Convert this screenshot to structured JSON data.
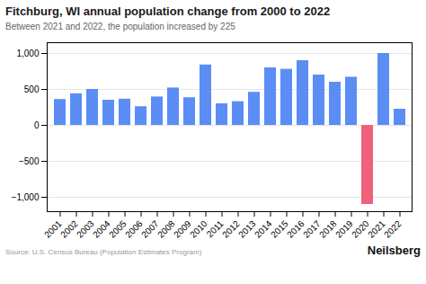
{
  "chart_data": {
    "type": "bar",
    "title": "Fitchburg, WI annual population change from 2000 to 2022",
    "subtitle": "Between 2021 and 2022, the population increased by 225",
    "source": "Source: U.S. Census Bureau (Population Estimates Program)",
    "branding": "Neilsberg",
    "categories": [
      "2001",
      "2002",
      "2003",
      "2004",
      "2005",
      "2006",
      "2007",
      "2008",
      "2009",
      "2010",
      "2011",
      "2012",
      "2013",
      "2014",
      "2015",
      "2016",
      "2017",
      "2018",
      "2019",
      "2020",
      "2021",
      "2022"
    ],
    "values": [
      360,
      440,
      500,
      350,
      365,
      260,
      395,
      520,
      385,
      840,
      300,
      330,
      460,
      800,
      780,
      900,
      700,
      600,
      670,
      -1100,
      1000,
      225
    ],
    "colors": [
      "#5b8df5",
      "#5b8df5",
      "#5b8df5",
      "#5b8df5",
      "#5b8df5",
      "#5b8df5",
      "#5b8df5",
      "#5b8df5",
      "#5b8df5",
      "#5b8df5",
      "#5b8df5",
      "#5b8df5",
      "#5b8df5",
      "#5b8df5",
      "#5b8df5",
      "#5b8df5",
      "#5b8df5",
      "#5b8df5",
      "#5b8df5",
      "#f0607a",
      "#5b8df5",
      "#5b8df5"
    ],
    "ylim": [
      -1200,
      1150
    ],
    "yticks": [
      {
        "value": -1000,
        "label": "−1,000"
      },
      {
        "value": -500,
        "label": "−500"
      },
      0,
      500,
      {
        "value": 1000,
        "label": "1,000"
      }
    ],
    "grid": true
  }
}
